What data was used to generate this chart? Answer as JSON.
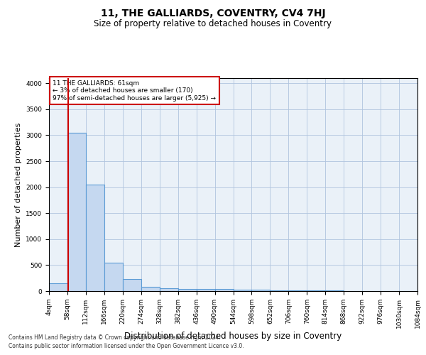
{
  "title": "11, THE GALLIARDS, COVENTRY, CV4 7HJ",
  "subtitle": "Size of property relative to detached houses in Coventry",
  "xlabel": "Distribution of detached houses by size in Coventry",
  "ylabel": "Number of detached properties",
  "bin_edges": [
    4,
    58,
    112,
    166,
    220,
    274,
    328,
    382,
    436,
    490,
    544,
    598,
    652,
    706,
    760,
    814,
    868,
    922,
    976,
    1030,
    1084
  ],
  "bar_heights": [
    150,
    3050,
    2050,
    550,
    230,
    80,
    55,
    40,
    40,
    40,
    30,
    25,
    20,
    15,
    10,
    8,
    5,
    5,
    3,
    3
  ],
  "bar_color": "#c5d8f0",
  "bar_edge_color": "#5b9bd5",
  "property_size": 61,
  "annotation_text": "11 THE GALLIARDS: 61sqm\n← 3% of detached houses are smaller (170)\n97% of semi-detached houses are larger (5,925) →",
  "annotation_box_color": "#ffffff",
  "annotation_box_edge_color": "#cc0000",
  "annotation_text_color": "#000000",
  "vline_color": "#cc0000",
  "vline_x": 61,
  "ylim": [
    0,
    4100
  ],
  "yticks": [
    0,
    500,
    1000,
    1500,
    2000,
    2500,
    3000,
    3500,
    4000
  ],
  "grid_color": "#b0c4de",
  "bg_color": "#eaf1f8",
  "footer_line1": "Contains HM Land Registry data © Crown copyright and database right 2024.",
  "footer_line2": "Contains public sector information licensed under the Open Government Licence v3.0.",
  "title_fontsize": 10,
  "subtitle_fontsize": 8.5,
  "tick_fontsize": 6.5,
  "ylabel_fontsize": 8,
  "xlabel_fontsize": 8.5,
  "annotation_fontsize": 6.5,
  "footer_fontsize": 5.5
}
